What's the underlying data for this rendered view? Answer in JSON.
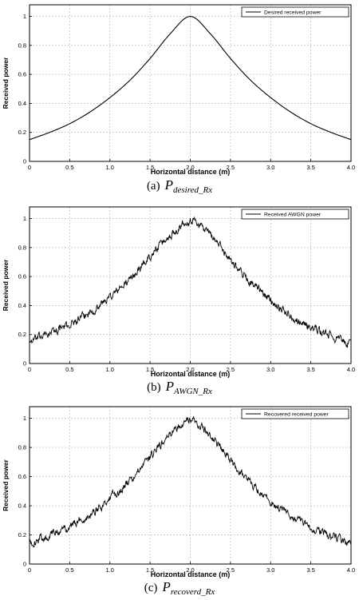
{
  "charts": [
    {
      "caption_letter": "(a)",
      "caption_symbol": "P",
      "caption_subscript": "desired_Rx"
    },
    {
      "caption_letter": "(b)",
      "caption_symbol": "P",
      "caption_subscript": "AWGN_Rx"
    },
    {
      "caption_letter": "(c)",
      "caption_symbol": "P",
      "caption_subscript": "recoverd_Rx"
    }
  ],
  "chart_data": [
    {
      "type": "line",
      "xlabel": "Horizontal distance (m)",
      "ylabel": "Received power",
      "xlim": [
        0,
        4
      ],
      "ylim": [
        0,
        1.08
      ],
      "xticks": [
        "0",
        "0.5",
        "1.0",
        "1.5",
        "2.0",
        "2.5",
        "3.0",
        "3.5",
        "4.0"
      ],
      "yticks": [
        "0",
        "0.2",
        "0.4",
        "0.6",
        "0.8",
        "1"
      ],
      "grid": true,
      "legend_position": "top-right",
      "noisy": false,
      "series": [
        {
          "name": "Desired received power",
          "x": [
            0,
            0.25,
            0.5,
            0.75,
            1.0,
            1.25,
            1.5,
            1.75,
            2.0,
            2.25,
            2.5,
            2.75,
            3.0,
            3.25,
            3.5,
            3.75,
            4.0
          ],
          "y": [
            0.15,
            0.2,
            0.26,
            0.34,
            0.44,
            0.56,
            0.71,
            0.88,
            1.0,
            0.88,
            0.71,
            0.56,
            0.44,
            0.34,
            0.26,
            0.2,
            0.15
          ]
        }
      ]
    },
    {
      "type": "line",
      "xlabel": "Horizontal distance (m)",
      "ylabel": "Received power",
      "xlim": [
        0,
        4
      ],
      "ylim": [
        0,
        1.08
      ],
      "xticks": [
        "0",
        "0.5",
        "1.0",
        "1.5",
        "2.0",
        "2.5",
        "3.0",
        "3.5",
        "4.0"
      ],
      "yticks": [
        "0",
        "0.2",
        "0.4",
        "0.6",
        "0.8",
        "1"
      ],
      "grid": true,
      "legend_position": "top-right",
      "noisy": true,
      "series": [
        {
          "name": "Received AWGN power",
          "x": [
            0,
            0.25,
            0.5,
            0.75,
            1.0,
            1.25,
            1.5,
            1.75,
            2.0,
            2.25,
            2.5,
            2.75,
            3.0,
            3.25,
            3.5,
            3.75,
            4.0
          ],
          "y": [
            0.15,
            0.21,
            0.27,
            0.35,
            0.46,
            0.58,
            0.74,
            0.88,
            0.99,
            0.89,
            0.72,
            0.56,
            0.44,
            0.33,
            0.25,
            0.19,
            0.13
          ]
        }
      ]
    },
    {
      "type": "line",
      "xlabel": "Horizontal distance (m)",
      "ylabel": "Received power",
      "xlim": [
        0,
        4
      ],
      "ylim": [
        0,
        1.08
      ],
      "xticks": [
        "0",
        "0.5",
        "1.0",
        "1.5",
        "2.0",
        "2.5",
        "3.0",
        "3.5",
        "4.0"
      ],
      "yticks": [
        "0",
        "0.2",
        "0.4",
        "0.6",
        "0.8",
        "1"
      ],
      "grid": true,
      "legend_position": "top-right",
      "noisy": true,
      "series": [
        {
          "name": "Recovered received power",
          "x": [
            0,
            0.25,
            0.5,
            0.75,
            1.0,
            1.25,
            1.5,
            1.75,
            2.0,
            2.25,
            2.5,
            2.75,
            3.0,
            3.25,
            3.5,
            3.75,
            4.0
          ],
          "y": [
            0.14,
            0.2,
            0.26,
            0.34,
            0.45,
            0.57,
            0.73,
            0.89,
            0.99,
            0.88,
            0.71,
            0.56,
            0.43,
            0.33,
            0.25,
            0.19,
            0.14
          ]
        }
      ]
    }
  ]
}
